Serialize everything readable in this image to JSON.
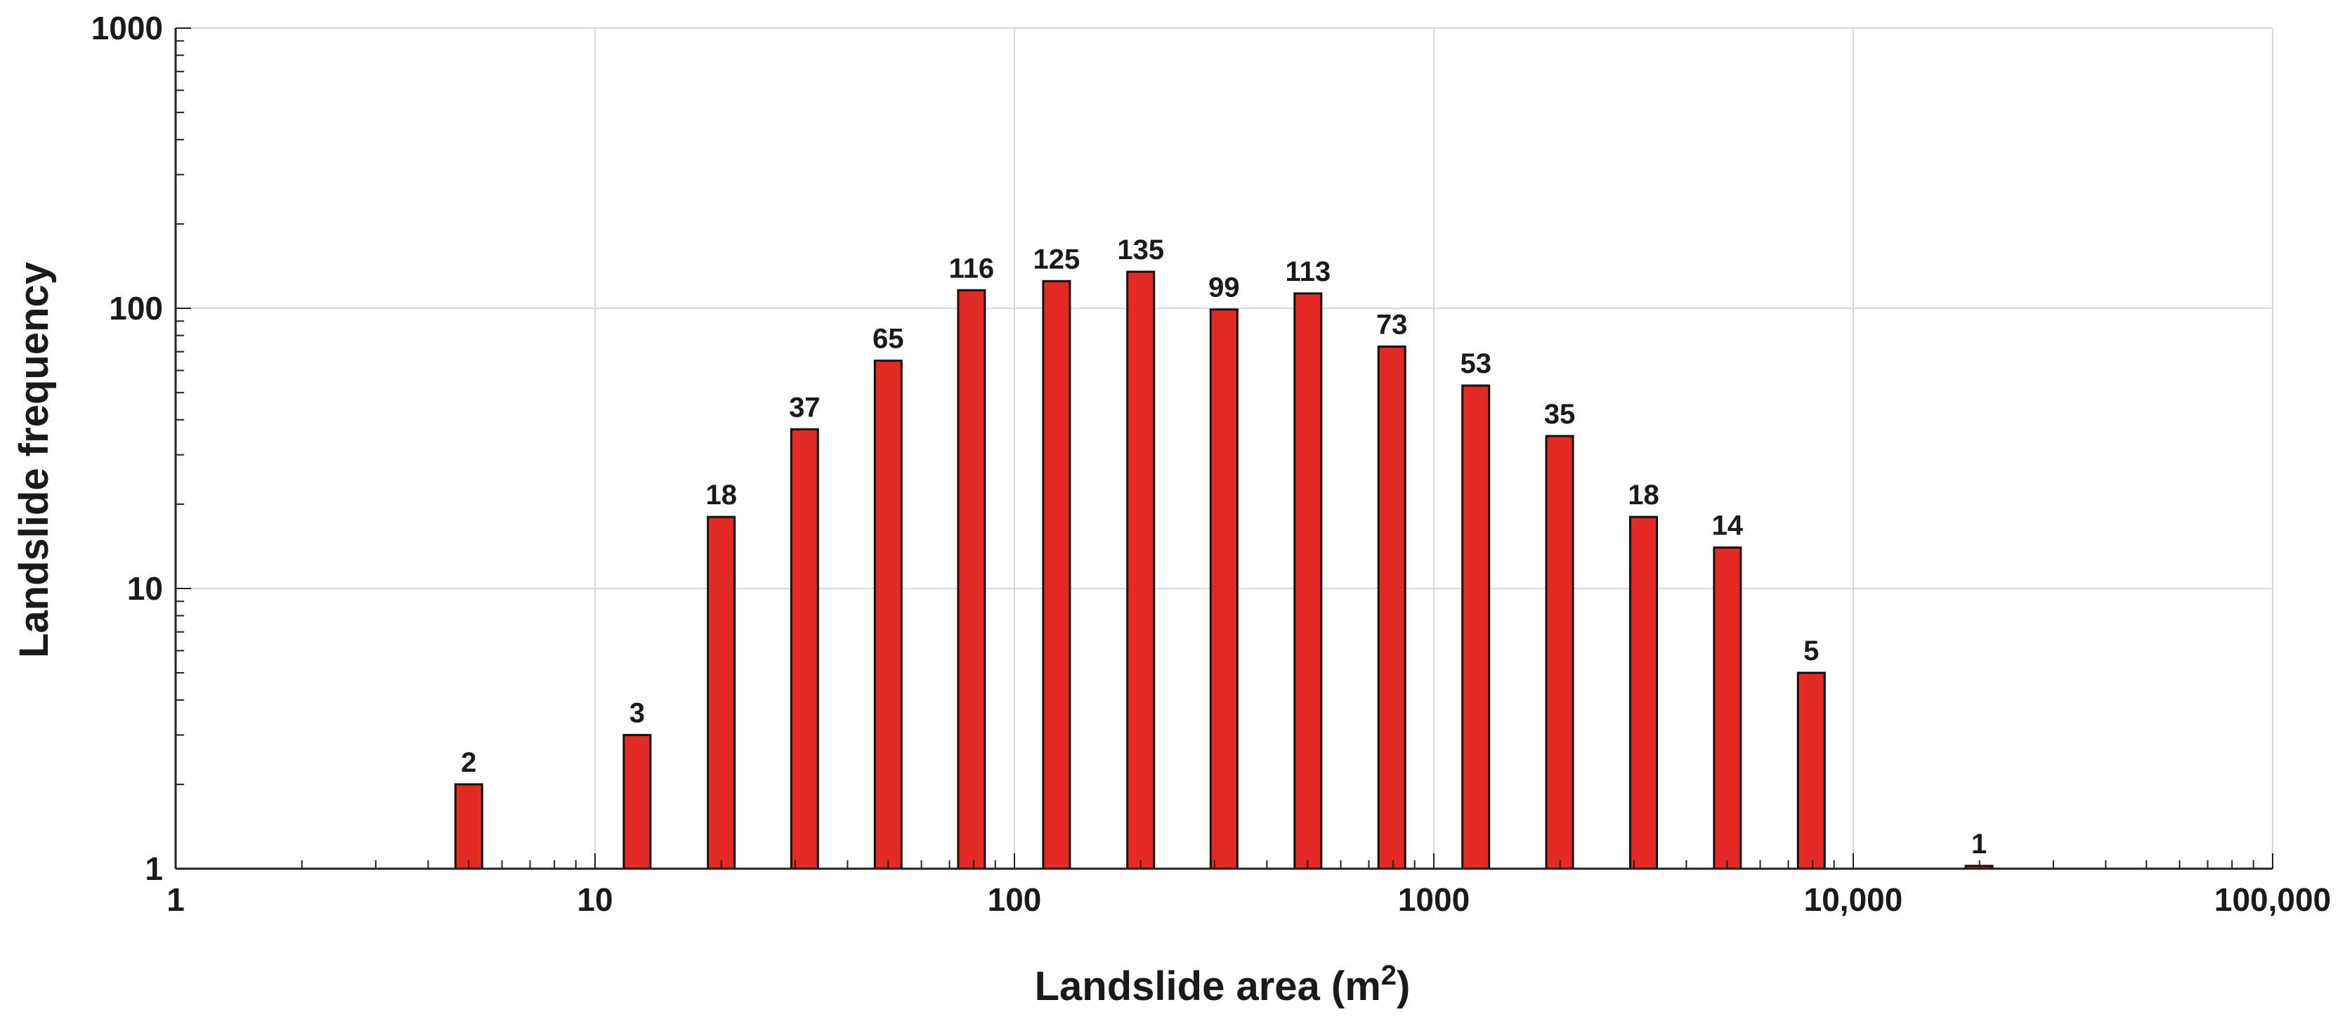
{
  "chart_data": {
    "type": "bar",
    "x_scale": "log",
    "y_scale": "log",
    "xlabel_main": "Landslide area (m",
    "xlabel_sup": "2",
    "xlabel_close": ")",
    "ylabel": "Landslide frequency",
    "xlim": [
      1,
      100000
    ],
    "ylim": [
      1,
      1000
    ],
    "grid": true,
    "bar_color": "#e32b24",
    "bar_edge_color": "#111111",
    "x_ticks": [
      {
        "value": 1,
        "label": "1"
      },
      {
        "value": 10,
        "label": "10"
      },
      {
        "value": 100,
        "label": "100"
      },
      {
        "value": 1000,
        "label": "1000"
      },
      {
        "value": 10000,
        "label": "10,000"
      },
      {
        "value": 100000,
        "label": "100,000"
      }
    ],
    "y_ticks": [
      {
        "value": 1,
        "label": "1"
      },
      {
        "value": 10,
        "label": "10"
      },
      {
        "value": 100,
        "label": "100"
      },
      {
        "value": 1000,
        "label": "1000"
      }
    ],
    "bars": [
      {
        "x": 5,
        "value": 2,
        "label": "2"
      },
      {
        "x": 12.6,
        "value": 3,
        "label": "3"
      },
      {
        "x": 20,
        "value": 18,
        "label": "18"
      },
      {
        "x": 31.6,
        "value": 37,
        "label": "37"
      },
      {
        "x": 50,
        "value": 65,
        "label": "65"
      },
      {
        "x": 79,
        "value": 116,
        "label": "116"
      },
      {
        "x": 126,
        "value": 125,
        "label": "125"
      },
      {
        "x": 200,
        "value": 135,
        "label": "135"
      },
      {
        "x": 316,
        "value": 99,
        "label": "99"
      },
      {
        "x": 501,
        "value": 113,
        "label": "113"
      },
      {
        "x": 794,
        "value": 73,
        "label": "73"
      },
      {
        "x": 1259,
        "value": 53,
        "label": "53"
      },
      {
        "x": 1995,
        "value": 35,
        "label": "35"
      },
      {
        "x": 3162,
        "value": 18,
        "label": "18"
      },
      {
        "x": 5012,
        "value": 14,
        "label": "14"
      },
      {
        "x": 7943,
        "value": 5,
        "label": "5"
      },
      {
        "x": 19953,
        "value": 1,
        "label": "1"
      }
    ]
  }
}
